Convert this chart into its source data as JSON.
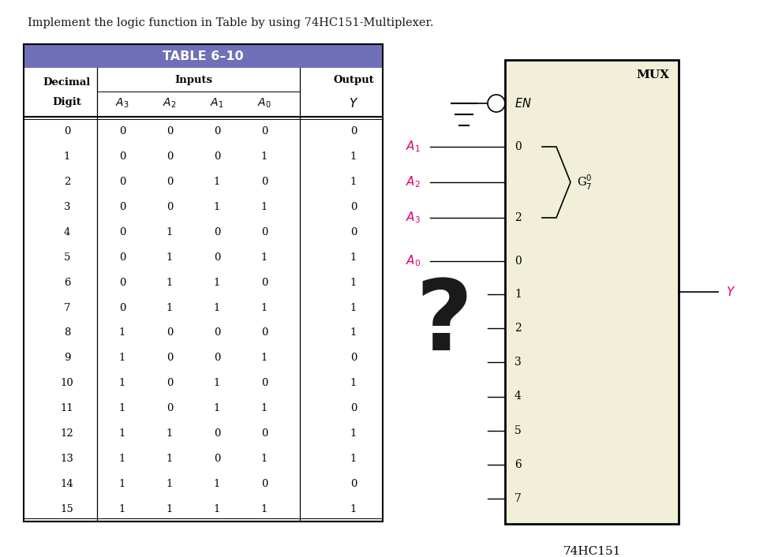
{
  "title": "Implement the logic function in Table by using 74HC151-Multiplexer.",
  "rows": [
    [
      0,
      0,
      0,
      0,
      0,
      0
    ],
    [
      1,
      0,
      0,
      0,
      1,
      1
    ],
    [
      2,
      0,
      0,
      1,
      0,
      1
    ],
    [
      3,
      0,
      0,
      1,
      1,
      0
    ],
    [
      4,
      0,
      1,
      0,
      0,
      0
    ],
    [
      5,
      0,
      1,
      0,
      1,
      1
    ],
    [
      6,
      0,
      1,
      1,
      0,
      1
    ],
    [
      7,
      0,
      1,
      1,
      1,
      1
    ],
    [
      8,
      1,
      0,
      0,
      0,
      1
    ],
    [
      9,
      1,
      0,
      0,
      1,
      0
    ],
    [
      10,
      1,
      0,
      1,
      0,
      1
    ],
    [
      11,
      1,
      0,
      1,
      1,
      0
    ],
    [
      12,
      1,
      1,
      0,
      0,
      1
    ],
    [
      13,
      1,
      1,
      0,
      1,
      1
    ],
    [
      14,
      1,
      1,
      1,
      0,
      0
    ],
    [
      15,
      1,
      1,
      1,
      1,
      1
    ]
  ],
  "table_header_bg": "#7070B8",
  "mux_bg": "#F2EFD8",
  "pink_color": "#E0007A",
  "black": "#000000",
  "dark": "#1a1a1a",
  "fig_w": 9.91,
  "fig_h": 7.06,
  "dpi": 100
}
